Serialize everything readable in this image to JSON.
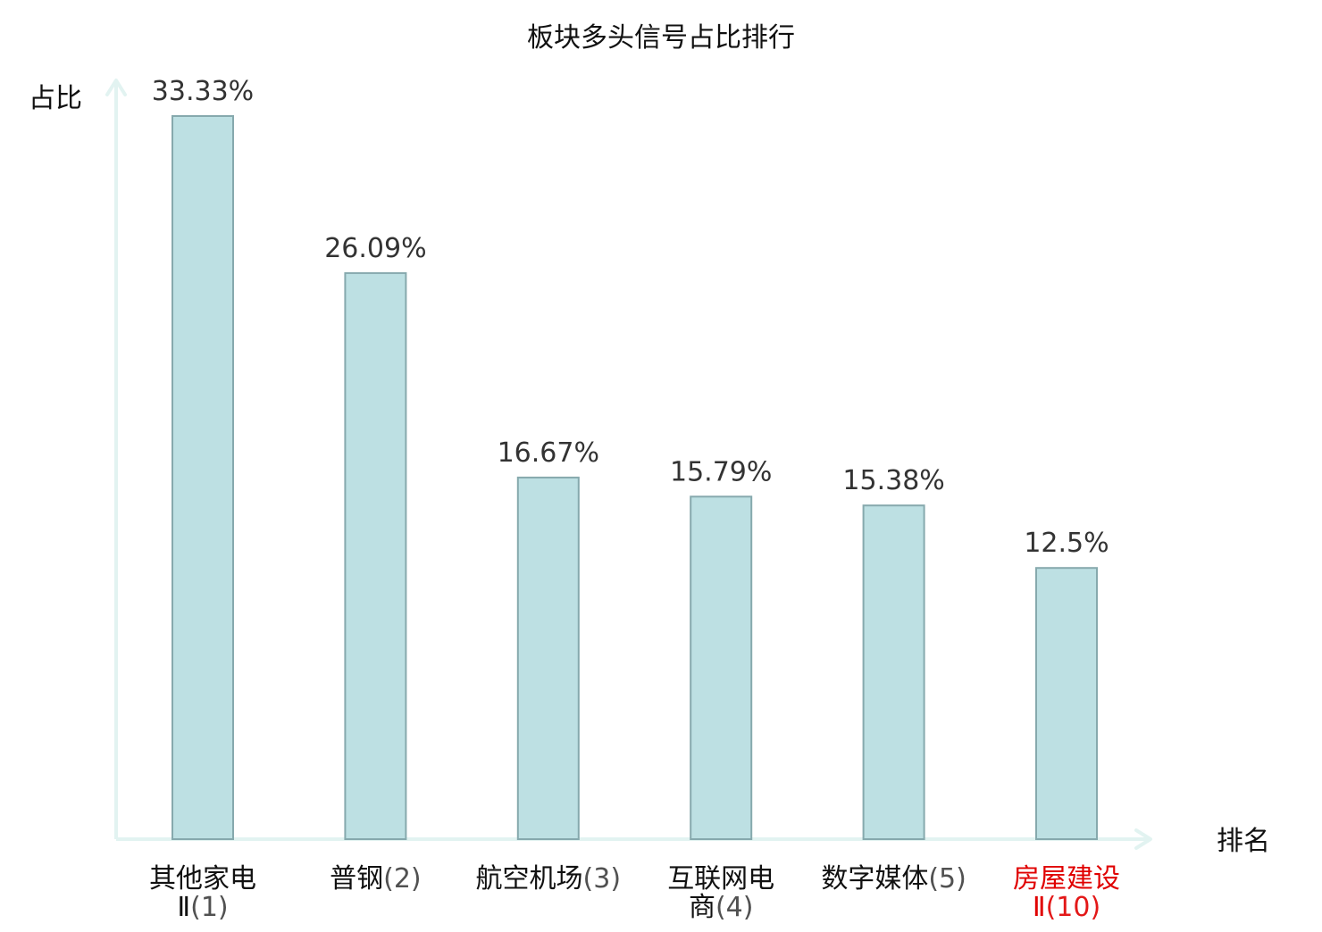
{
  "chart_data": {
    "type": "bar",
    "title": "板块多头信号占比排行",
    "ylabel": "占比",
    "xlabel": "排名",
    "ylim": [
      0,
      35
    ],
    "grid": false,
    "categories": [
      {
        "name_lines": [
          "其他家电",
          "Ⅱ"
        ],
        "rank": "(1)",
        "highlight": false
      },
      {
        "name_lines": [
          "普钢"
        ],
        "rank": "(2)",
        "highlight": false
      },
      {
        "name_lines": [
          "航空机场"
        ],
        "rank": "(3)",
        "highlight": false
      },
      {
        "name_lines": [
          "互联网电",
          "商"
        ],
        "rank": "(4)",
        "highlight": false
      },
      {
        "name_lines": [
          "数字媒体"
        ],
        "rank": "(5)",
        "highlight": false
      },
      {
        "name_lines": [
          "房屋建设",
          "Ⅱ"
        ],
        "rank": "(10)",
        "highlight": true
      }
    ],
    "values": [
      33.33,
      26.09,
      16.67,
      15.79,
      15.38,
      12.5
    ],
    "value_labels": [
      "33.33%",
      "26.09%",
      "16.67%",
      "15.79%",
      "15.38%",
      "12.5%"
    ],
    "colors": {
      "bar_fill": "#bde0e3",
      "bar_stroke": "#86a9ad",
      "axis": "#e2f3f1",
      "text": "#333333",
      "label": "#111111",
      "highlight": "#e00000"
    }
  }
}
